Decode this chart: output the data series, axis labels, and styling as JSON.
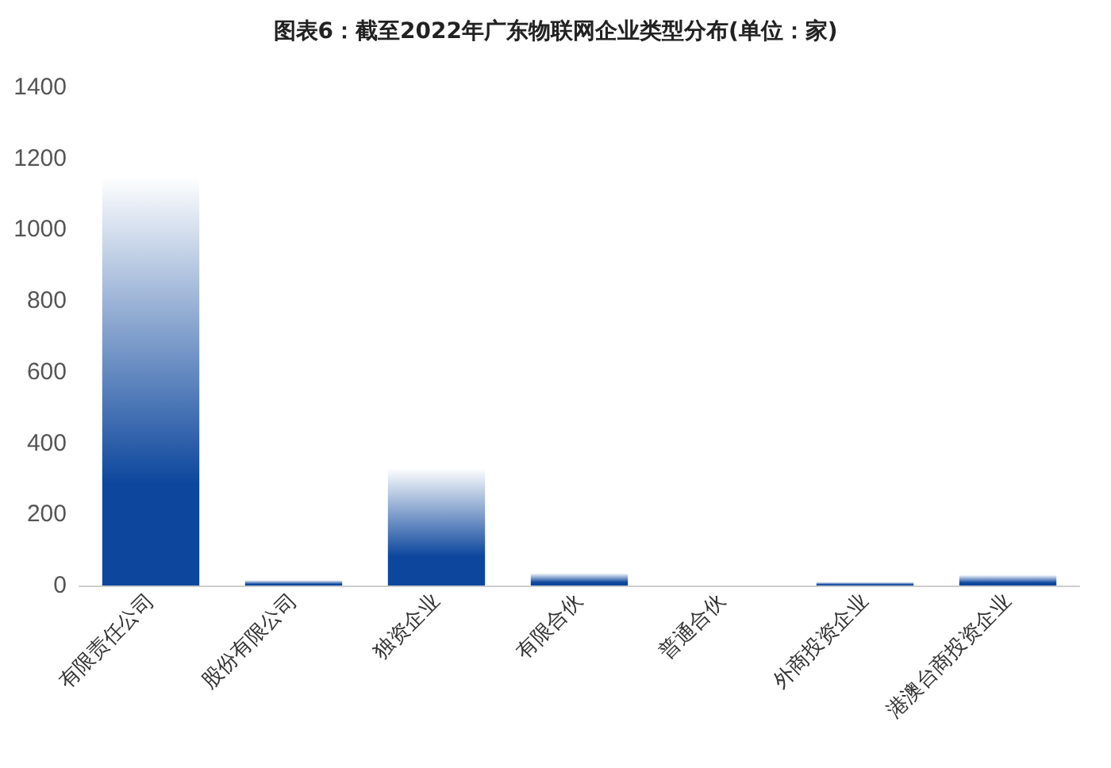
{
  "chart_data": {
    "type": "bar",
    "title": "图表6：截至2022年广东物联网企业类型分布(单位：家)",
    "categories": [
      "有限责任公司",
      "股份有限公司",
      "独资企业",
      "有限合伙",
      "普通合伙",
      "外商投资企业",
      "港澳台商投资企业"
    ],
    "values": [
      1150,
      15,
      330,
      35,
      0,
      10,
      30
    ],
    "color": "#0d479d",
    "ylim": [
      0,
      1400
    ],
    "yticks": [
      0,
      200,
      400,
      600,
      800,
      1000,
      1200,
      1400
    ],
    "grid": false
  }
}
